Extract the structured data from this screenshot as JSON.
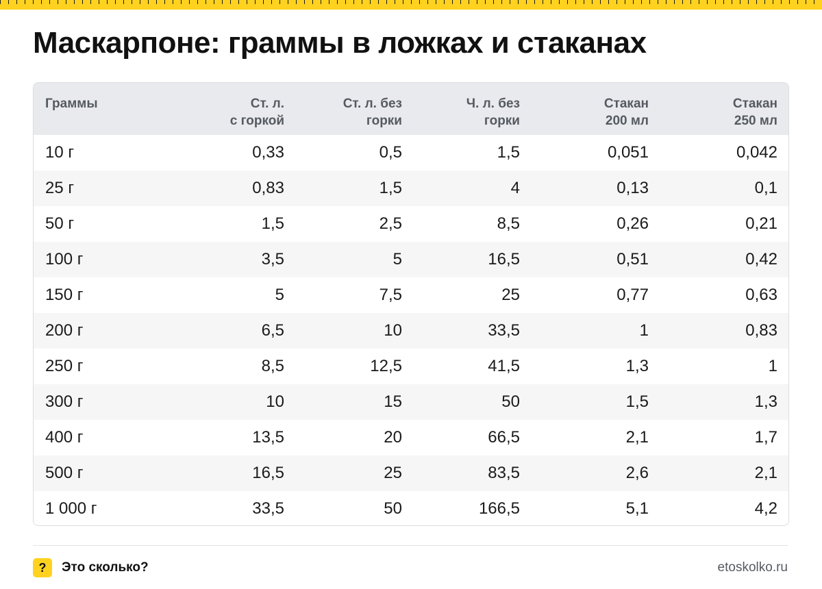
{
  "title": "Маскарпоне: граммы в ложках и стаканах",
  "table": {
    "headers": [
      [
        "Граммы",
        ""
      ],
      [
        "Ст. л.",
        "с горкой"
      ],
      [
        "Ст. л. без",
        "горки"
      ],
      [
        "Ч. л. без",
        "горки"
      ],
      [
        "Стакан",
        "200 мл"
      ],
      [
        "Стакан",
        "250 мл"
      ]
    ],
    "rows": [
      [
        "10 г",
        "0,33",
        "0,5",
        "1,5",
        "0,051",
        "0,042"
      ],
      [
        "25 г",
        "0,83",
        "1,5",
        "4",
        "0,13",
        "0,1"
      ],
      [
        "50 г",
        "1,5",
        "2,5",
        "8,5",
        "0,26",
        "0,21"
      ],
      [
        "100 г",
        "3,5",
        "5",
        "16,5",
        "0,51",
        "0,42"
      ],
      [
        "150 г",
        "5",
        "7,5",
        "25",
        "0,77",
        "0,63"
      ],
      [
        "200 г",
        "6,5",
        "10",
        "33,5",
        "1",
        "0,83"
      ],
      [
        "250 г",
        "8,5",
        "12,5",
        "41,5",
        "1,3",
        "1"
      ],
      [
        "300 г",
        "10",
        "15",
        "50",
        "1,5",
        "1,3"
      ],
      [
        "400 г",
        "13,5",
        "20",
        "66,5",
        "2,1",
        "1,7"
      ],
      [
        "500 г",
        "16,5",
        "25",
        "83,5",
        "2,6",
        "2,1"
      ],
      [
        "1 000 г",
        "33,5",
        "50",
        "166,5",
        "5,1",
        "4,2"
      ]
    ]
  },
  "footer": {
    "brand_icon": "?",
    "brand_name": "Это сколько?",
    "site": "etoskolko.ru"
  },
  "colors": {
    "accent": "#ffd21f",
    "header_bg": "#e9eaed",
    "row_alt": "#f6f6f7"
  }
}
